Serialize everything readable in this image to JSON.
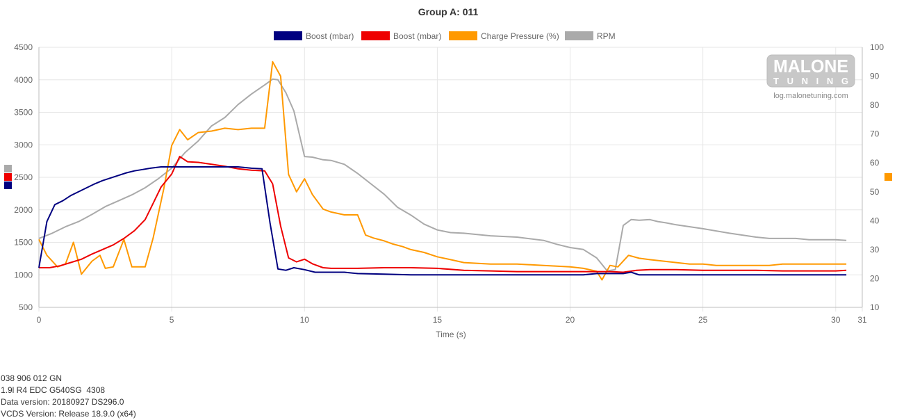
{
  "watermark": {
    "logo_text": "MALONE",
    "logo_sub_text": "TUNING",
    "site": "log.malonetuning.com"
  },
  "info_lines": [
    "038 906 012 GN",
    "1.9l R4 EDC G540SG  4308",
    "Data version: 20180927 DS296.0",
    "VCDS Version: Release 18.9.0 (x64)"
  ],
  "chart_data": {
    "type": "line",
    "title": "Group A: 011",
    "xlabel": "Time (s)",
    "xlim": [
      0,
      31
    ],
    "x_ticks": [
      0,
      5,
      10,
      15,
      20,
      25,
      30,
      31
    ],
    "y_left": {
      "lim": [
        500,
        4500
      ],
      "ticks": [
        500,
        1000,
        1500,
        2000,
        2500,
        3000,
        3500,
        4000,
        4500
      ]
    },
    "y_right": {
      "lim": [
        10,
        100
      ],
      "ticks": [
        10,
        20,
        30,
        40,
        50,
        60,
        70,
        80,
        90,
        100
      ]
    },
    "grid": true,
    "legend_position": "top",
    "series": [
      {
        "name": "Boost (mbar)",
        "color": "#000080",
        "axis": "left",
        "points": [
          [
            0,
            1110
          ],
          [
            0.3,
            1820
          ],
          [
            0.6,
            2080
          ],
          [
            0.9,
            2140
          ],
          [
            1.2,
            2220
          ],
          [
            1.5,
            2280
          ],
          [
            1.8,
            2340
          ],
          [
            2.1,
            2400
          ],
          [
            2.4,
            2450
          ],
          [
            2.7,
            2490
          ],
          [
            3.0,
            2530
          ],
          [
            3.3,
            2570
          ],
          [
            3.6,
            2600
          ],
          [
            3.9,
            2620
          ],
          [
            4.2,
            2640
          ],
          [
            4.6,
            2660
          ],
          [
            5,
            2660
          ],
          [
            5.5,
            2660
          ],
          [
            6,
            2660
          ],
          [
            6.5,
            2660
          ],
          [
            7,
            2660
          ],
          [
            7.5,
            2660
          ],
          [
            8,
            2640
          ],
          [
            8.4,
            2630
          ],
          [
            8.7,
            1800
          ],
          [
            9.0,
            1090
          ],
          [
            9.3,
            1070
          ],
          [
            9.6,
            1110
          ],
          [
            10.0,
            1080
          ],
          [
            10.4,
            1040
          ],
          [
            11,
            1040
          ],
          [
            11.5,
            1040
          ],
          [
            12,
            1020
          ],
          [
            13,
            1010
          ],
          [
            14,
            1000
          ],
          [
            15,
            1000
          ],
          [
            16,
            1000
          ],
          [
            17,
            1000
          ],
          [
            18,
            1000
          ],
          [
            19,
            1000
          ],
          [
            20,
            1000
          ],
          [
            20.5,
            1000
          ],
          [
            21,
            1020
          ],
          [
            21.5,
            1020
          ],
          [
            22,
            1020
          ],
          [
            22.3,
            1040
          ],
          [
            22.6,
            1000
          ],
          [
            23,
            1000
          ],
          [
            24,
            1000
          ],
          [
            25,
            1000
          ],
          [
            26,
            1000
          ],
          [
            27,
            1000
          ],
          [
            28,
            1000
          ],
          [
            29,
            1000
          ],
          [
            30,
            1000
          ],
          [
            30.4,
            1000
          ]
        ]
      },
      {
        "name": "Boost (mbar)",
        "color": "#ee0000",
        "axis": "left",
        "points": [
          [
            0,
            1110
          ],
          [
            0.4,
            1110
          ],
          [
            0.8,
            1140
          ],
          [
            1.2,
            1190
          ],
          [
            1.6,
            1240
          ],
          [
            2,
            1320
          ],
          [
            2.4,
            1390
          ],
          [
            2.8,
            1460
          ],
          [
            3.2,
            1560
          ],
          [
            3.6,
            1680
          ],
          [
            4.0,
            1850
          ],
          [
            4.3,
            2100
          ],
          [
            4.6,
            2350
          ],
          [
            5,
            2550
          ],
          [
            5.3,
            2820
          ],
          [
            5.6,
            2740
          ],
          [
            6,
            2730
          ],
          [
            6.5,
            2700
          ],
          [
            7,
            2670
          ],
          [
            7.5,
            2630
          ],
          [
            8,
            2610
          ],
          [
            8.5,
            2600
          ],
          [
            8.8,
            2400
          ],
          [
            9.1,
            1750
          ],
          [
            9.4,
            1260
          ],
          [
            9.7,
            1200
          ],
          [
            10,
            1240
          ],
          [
            10.3,
            1170
          ],
          [
            10.7,
            1110
          ],
          [
            11,
            1100
          ],
          [
            12,
            1100
          ],
          [
            13,
            1110
          ],
          [
            14,
            1110
          ],
          [
            15,
            1100
          ],
          [
            16,
            1070
          ],
          [
            17,
            1060
          ],
          [
            18,
            1050
          ],
          [
            19,
            1050
          ],
          [
            20,
            1050
          ],
          [
            21,
            1050
          ],
          [
            21.5,
            1050
          ],
          [
            22,
            1040
          ],
          [
            22.5,
            1070
          ],
          [
            23,
            1080
          ],
          [
            24,
            1080
          ],
          [
            25,
            1070
          ],
          [
            26,
            1070
          ],
          [
            27,
            1070
          ],
          [
            28,
            1060
          ],
          [
            29,
            1060
          ],
          [
            30,
            1060
          ],
          [
            30.4,
            1070
          ]
        ]
      },
      {
        "name": "Charge Pressure (%)",
        "color": "#ff9900",
        "axis": "right",
        "points": [
          [
            0,
            33.5
          ],
          [
            0.3,
            28
          ],
          [
            0.7,
            24
          ],
          [
            1.0,
            25
          ],
          [
            1.3,
            32.5
          ],
          [
            1.6,
            21.5
          ],
          [
            2.0,
            26
          ],
          [
            2.3,
            28
          ],
          [
            2.5,
            23.5
          ],
          [
            2.8,
            24
          ],
          [
            3.2,
            33.5
          ],
          [
            3.5,
            24
          ],
          [
            4.0,
            24
          ],
          [
            4.3,
            34
          ],
          [
            4.7,
            51
          ],
          [
            5.0,
            66
          ],
          [
            5.3,
            71.5
          ],
          [
            5.6,
            68
          ],
          [
            6,
            70.5
          ],
          [
            6.5,
            71
          ],
          [
            7,
            72
          ],
          [
            7.5,
            71.5
          ],
          [
            8,
            72
          ],
          [
            8.5,
            72
          ],
          [
            8.8,
            95
          ],
          [
            9.1,
            90
          ],
          [
            9.4,
            56
          ],
          [
            9.7,
            50
          ],
          [
            10,
            54.5
          ],
          [
            10.3,
            49
          ],
          [
            10.7,
            44
          ],
          [
            11,
            43
          ],
          [
            11.5,
            42
          ],
          [
            12,
            42
          ],
          [
            12.3,
            35
          ],
          [
            12.6,
            34
          ],
          [
            13,
            33
          ],
          [
            13.3,
            32
          ],
          [
            13.7,
            31
          ],
          [
            14,
            30
          ],
          [
            14.5,
            29
          ],
          [
            15,
            27.5
          ],
          [
            15.5,
            26.5
          ],
          [
            16,
            25.5
          ],
          [
            17,
            25
          ],
          [
            18,
            25
          ],
          [
            19,
            24.5
          ],
          [
            20,
            24
          ],
          [
            20.5,
            23.5
          ],
          [
            21,
            22.5
          ],
          [
            21.2,
            19.5
          ],
          [
            21.5,
            24.5
          ],
          [
            21.8,
            24
          ],
          [
            22.2,
            28
          ],
          [
            22.6,
            27
          ],
          [
            23,
            26.5
          ],
          [
            23.5,
            26
          ],
          [
            24,
            25.5
          ],
          [
            24.5,
            25
          ],
          [
            25,
            25
          ],
          [
            25.5,
            24.5
          ],
          [
            26,
            24.5
          ],
          [
            27,
            24.5
          ],
          [
            27.5,
            24.5
          ],
          [
            28,
            25
          ],
          [
            29,
            25
          ],
          [
            30,
            25
          ],
          [
            30.4,
            25
          ]
        ]
      },
      {
        "name": "RPM",
        "color": "#aaaaaa",
        "axis": "left",
        "points": [
          [
            0,
            1560
          ],
          [
            0.5,
            1640
          ],
          [
            1.0,
            1740
          ],
          [
            1.5,
            1820
          ],
          [
            2,
            1930
          ],
          [
            2.5,
            2050
          ],
          [
            3,
            2140
          ],
          [
            3.5,
            2230
          ],
          [
            4,
            2340
          ],
          [
            4.5,
            2480
          ],
          [
            5,
            2640
          ],
          [
            5.5,
            2880
          ],
          [
            6,
            3060
          ],
          [
            6.5,
            3290
          ],
          [
            7,
            3420
          ],
          [
            7.5,
            3620
          ],
          [
            8,
            3780
          ],
          [
            8.5,
            3920
          ],
          [
            8.8,
            4010
          ],
          [
            9.0,
            4000
          ],
          [
            9.3,
            3800
          ],
          [
            9.6,
            3520
          ],
          [
            10,
            2820
          ],
          [
            10.3,
            2810
          ],
          [
            10.7,
            2770
          ],
          [
            11,
            2760
          ],
          [
            11.5,
            2700
          ],
          [
            12,
            2560
          ],
          [
            12.5,
            2400
          ],
          [
            13,
            2240
          ],
          [
            13.5,
            2040
          ],
          [
            14,
            1920
          ],
          [
            14.5,
            1780
          ],
          [
            15,
            1690
          ],
          [
            15.5,
            1650
          ],
          [
            16,
            1640
          ],
          [
            17,
            1600
          ],
          [
            18,
            1580
          ],
          [
            19,
            1530
          ],
          [
            19.5,
            1470
          ],
          [
            20,
            1420
          ],
          [
            20.5,
            1390
          ],
          [
            21,
            1260
          ],
          [
            21.2,
            1160
          ],
          [
            21.4,
            1060
          ],
          [
            21.7,
            1080
          ],
          [
            22,
            1760
          ],
          [
            22.3,
            1850
          ],
          [
            22.6,
            1840
          ],
          [
            23,
            1850
          ],
          [
            23.3,
            1820
          ],
          [
            23.6,
            1800
          ],
          [
            24,
            1770
          ],
          [
            25,
            1710
          ],
          [
            26,
            1640
          ],
          [
            27,
            1580
          ],
          [
            27.5,
            1560
          ],
          [
            28,
            1560
          ],
          [
            28.5,
            1560
          ],
          [
            29,
            1540
          ],
          [
            29.5,
            1540
          ],
          [
            30,
            1540
          ],
          [
            30.4,
            1530
          ]
        ]
      }
    ],
    "side_markers": {
      "left": [
        "#aaaaaa",
        "#ee0000",
        "#000080"
      ],
      "right": [
        "#ff9900"
      ]
    }
  }
}
